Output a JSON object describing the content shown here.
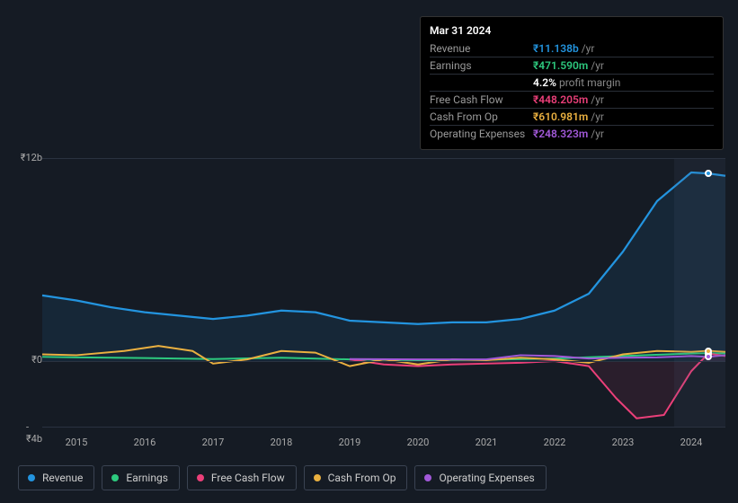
{
  "tooltip": {
    "date": "Mar 31 2024",
    "rows": [
      {
        "label": "Revenue",
        "value": "₹11.138b",
        "unit": "/yr",
        "color": "#2394df"
      },
      {
        "label": "Earnings",
        "value": "₹471.590m",
        "unit": "/yr",
        "color": "#2dc97e",
        "sub_value": "4.2%",
        "sub_label": "profit margin"
      },
      {
        "label": "Free Cash Flow",
        "value": "₹448.205m",
        "unit": "/yr",
        "color": "#eb3f79"
      },
      {
        "label": "Cash From Op",
        "value": "₹610.981m",
        "unit": "/yr",
        "color": "#eab040"
      },
      {
        "label": "Operating Expenses",
        "value": "₹248.323m",
        "unit": "/yr",
        "color": "#a259d9"
      }
    ]
  },
  "chart": {
    "type": "line-area",
    "background_color": "#151b24",
    "grid_color": "#2a3240",
    "y": {
      "min": -4,
      "max": 12,
      "ticks": [
        {
          "v": 12,
          "label": "₹12b"
        },
        {
          "v": 0,
          "label": "₹0"
        },
        {
          "v": -4,
          "label": "-₹4b"
        }
      ]
    },
    "x": {
      "min": 2014.5,
      "max": 2024.5,
      "ticks": [
        2015,
        2016,
        2017,
        2018,
        2019,
        2020,
        2021,
        2022,
        2023,
        2024
      ]
    },
    "highlight_band": {
      "from": 2023.75,
      "to": 2024.5
    },
    "marker_x": 2024.25,
    "series": [
      {
        "name": "Revenue",
        "color": "#2394df",
        "width": 2.2,
        "fill": true,
        "fill_opacity": 0.1,
        "data": [
          [
            2014.5,
            3.9
          ],
          [
            2015,
            3.6
          ],
          [
            2015.5,
            3.2
          ],
          [
            2016,
            2.9
          ],
          [
            2016.5,
            2.7
          ],
          [
            2017,
            2.5
          ],
          [
            2017.5,
            2.7
          ],
          [
            2018,
            3.0
          ],
          [
            2018.5,
            2.9
          ],
          [
            2019,
            2.4
          ],
          [
            2019.5,
            2.3
          ],
          [
            2020,
            2.2
          ],
          [
            2020.5,
            2.3
          ],
          [
            2021,
            2.3
          ],
          [
            2021.5,
            2.5
          ],
          [
            2022,
            3.0
          ],
          [
            2022.5,
            4.0
          ],
          [
            2023,
            6.5
          ],
          [
            2023.5,
            9.5
          ],
          [
            2024,
            11.2
          ],
          [
            2024.25,
            11.14
          ],
          [
            2024.5,
            11.0
          ]
        ]
      },
      {
        "name": "Earnings",
        "color": "#2dc97e",
        "width": 2,
        "fill": false,
        "data": [
          [
            2014.5,
            0.25
          ],
          [
            2015,
            0.22
          ],
          [
            2016,
            0.18
          ],
          [
            2017,
            0.12
          ],
          [
            2018,
            0.2
          ],
          [
            2019,
            0.1
          ],
          [
            2020,
            0.05
          ],
          [
            2021,
            0.08
          ],
          [
            2022,
            0.15
          ],
          [
            2023,
            0.3
          ],
          [
            2024,
            0.45
          ],
          [
            2024.25,
            0.47
          ],
          [
            2024.5,
            0.46
          ]
        ]
      },
      {
        "name": "Free Cash Flow",
        "color": "#eb3f79",
        "width": 2,
        "fill": true,
        "fill_opacity": 0.1,
        "data": [
          [
            2019,
            0.1
          ],
          [
            2019.5,
            -0.2
          ],
          [
            2020,
            -0.3
          ],
          [
            2020.5,
            -0.2
          ],
          [
            2021,
            -0.15
          ],
          [
            2021.5,
            -0.1
          ],
          [
            2022,
            0.0
          ],
          [
            2022.5,
            -0.3
          ],
          [
            2022.9,
            -2.2
          ],
          [
            2023.2,
            -3.4
          ],
          [
            2023.6,
            -3.2
          ],
          [
            2024,
            -0.6
          ],
          [
            2024.25,
            0.45
          ],
          [
            2024.5,
            0.3
          ]
        ]
      },
      {
        "name": "Cash From Op",
        "color": "#eab040",
        "width": 2,
        "fill": false,
        "data": [
          [
            2014.5,
            0.4
          ],
          [
            2015,
            0.35
          ],
          [
            2015.7,
            0.6
          ],
          [
            2016.2,
            0.9
          ],
          [
            2016.7,
            0.6
          ],
          [
            2017,
            -0.15
          ],
          [
            2017.5,
            0.1
          ],
          [
            2018,
            0.6
          ],
          [
            2018.5,
            0.5
          ],
          [
            2019,
            -0.3
          ],
          [
            2019.5,
            0.1
          ],
          [
            2020,
            -0.2
          ],
          [
            2020.5,
            0.1
          ],
          [
            2021,
            0.05
          ],
          [
            2021.5,
            0.2
          ],
          [
            2022,
            0.1
          ],
          [
            2022.5,
            -0.1
          ],
          [
            2023,
            0.4
          ],
          [
            2023.5,
            0.6
          ],
          [
            2024,
            0.55
          ],
          [
            2024.25,
            0.61
          ],
          [
            2024.5,
            0.55
          ]
        ]
      },
      {
        "name": "Operating Expenses",
        "color": "#a259d9",
        "width": 2,
        "fill": false,
        "data": [
          [
            2019,
            0.12
          ],
          [
            2020,
            0.1
          ],
          [
            2021,
            0.1
          ],
          [
            2021.5,
            0.35
          ],
          [
            2022,
            0.3
          ],
          [
            2022.5,
            0.15
          ],
          [
            2023,
            0.2
          ],
          [
            2023.5,
            0.22
          ],
          [
            2024,
            0.3
          ],
          [
            2024.25,
            0.25
          ],
          [
            2024.5,
            0.35
          ]
        ]
      }
    ]
  },
  "legend": [
    {
      "label": "Revenue",
      "color": "#2394df"
    },
    {
      "label": "Earnings",
      "color": "#2dc97e"
    },
    {
      "label": "Free Cash Flow",
      "color": "#eb3f79"
    },
    {
      "label": "Cash From Op",
      "color": "#eab040"
    },
    {
      "label": "Operating Expenses",
      "color": "#a259d9"
    }
  ]
}
